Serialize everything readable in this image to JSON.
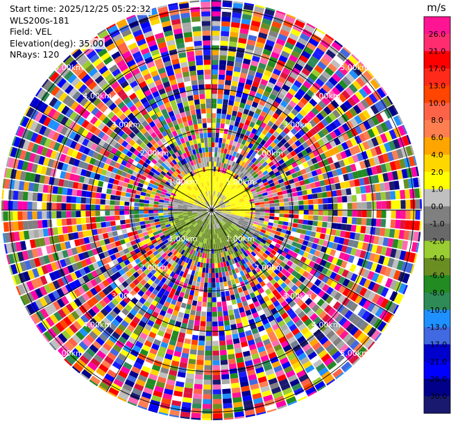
{
  "header": {
    "start_time": "Start time: 2025/12/25 05:22:32",
    "instrument": "WLS200s-181",
    "field": "Field: VEL",
    "elevation": "Elevation(deg): 35.00",
    "nrays": "NRays: 120"
  },
  "chart_data": {
    "type": "heatmap",
    "projection": "polar-ppi",
    "field": "VEL",
    "n_rays": 120,
    "elevation_deg": 35.0,
    "max_range_km": 5.2,
    "range_ring_labels": [
      "1.00km",
      "2.00km",
      "3.00km",
      "4.00km",
      "5.00km"
    ],
    "range_rings_km": [
      1,
      2,
      3,
      4,
      5
    ],
    "colorbar": {
      "unit": "m/s",
      "tick_labels": [
        "26.0",
        "21.0",
        "17.0",
        "13.0",
        "10.0",
        "8.0",
        "6.0",
        "4.0",
        "2.0",
        "1.0",
        "0.0",
        "-1.0",
        "-2.0",
        "-4.0",
        "-6.0",
        "-8.0",
        "-10.0",
        "-13.0",
        "-17.0",
        "-21.0",
        "-26.0",
        "-30.0"
      ],
      "colors": [
        "#ff1493",
        "#ff2d6f",
        "#ff0000",
        "#ff2a1a",
        "#ff4500",
        "#ff6347",
        "#ff7f50",
        "#ffa500",
        "#ffd700",
        "#ffff00",
        "#c0c0c0",
        "#808080",
        "#696969",
        "#9acd32",
        "#6b8e23",
        "#228b22",
        "#2e8b57",
        "#1e90ff",
        "#4169e1",
        "#0000cd",
        "#0000ff",
        "#00008b",
        "#191970"
      ]
    },
    "inner_pattern": {
      "yellow_positive_radius_km": 1.0,
      "green_negative_radius_km": 1.3,
      "grey_zero_band": true,
      "noise_beyond_km": 1.3
    }
  }
}
